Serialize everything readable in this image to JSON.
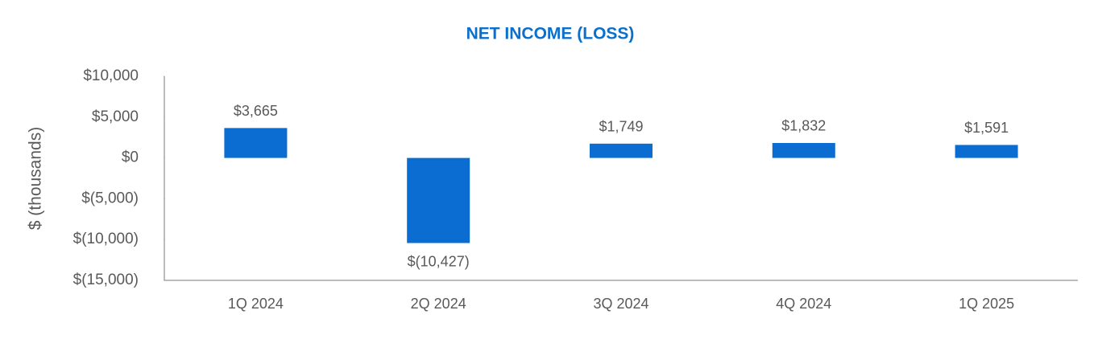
{
  "chart_data": {
    "type": "bar",
    "title": "NET INCOME (LOSS)",
    "y_label": "$ (thousands)",
    "categories": [
      "1Q 2024",
      "2Q 2024",
      "3Q 2024",
      "4Q 2024",
      "1Q 2025"
    ],
    "values": [
      3665,
      -10427,
      1749,
      1832,
      1591
    ],
    "value_labels": [
      "$3,665",
      "$(10,427)",
      "$1,749",
      "$1,832",
      "$1,591"
    ],
    "color": "#0b6dd1",
    "ylim": [
      -15000,
      10000
    ],
    "yticks": [
      {
        "value": 10000,
        "label": "$10,000"
      },
      {
        "value": 5000,
        "label": "$5,000"
      },
      {
        "value": 0,
        "label": "$0"
      },
      {
        "value": -5000,
        "label": "$(5,000)"
      },
      {
        "value": -10000,
        "label": "$(10,000)"
      },
      {
        "value": -15000,
        "label": "$(15,000)"
      }
    ],
    "grid": false
  }
}
